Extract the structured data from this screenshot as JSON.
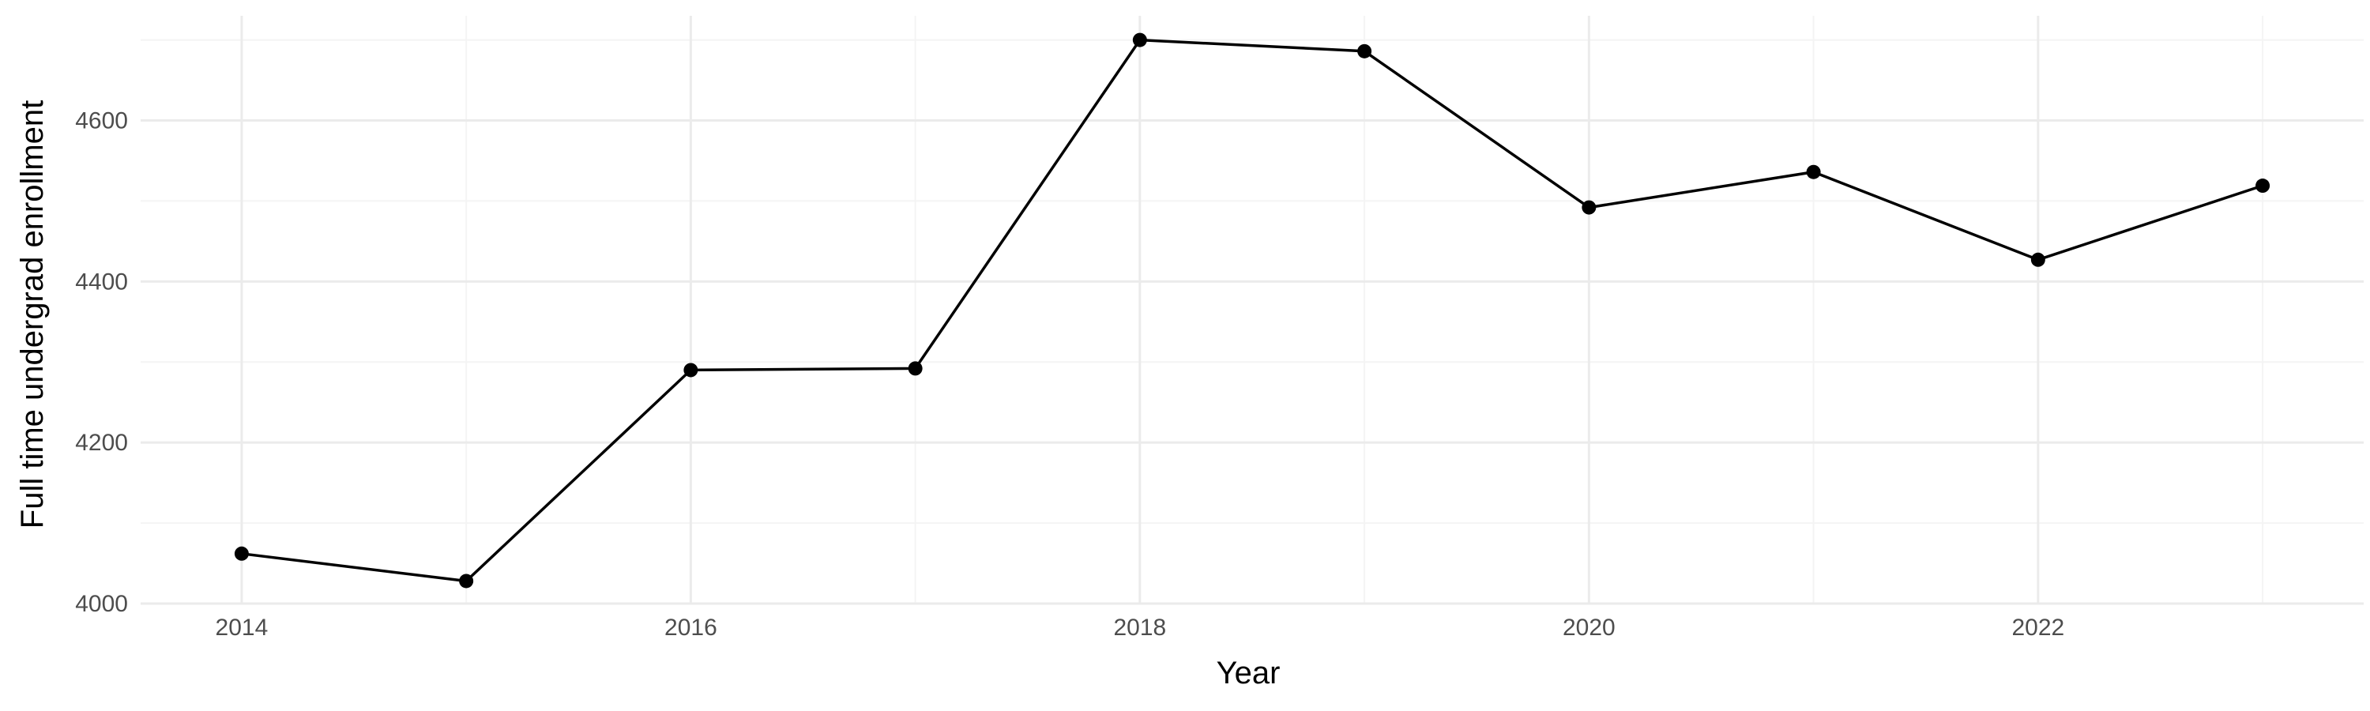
{
  "chart_data": {
    "type": "line",
    "title": "",
    "xlabel": "Year",
    "ylabel": "Full time undergrad enrollment",
    "x": [
      2014,
      2015,
      2016,
      2017,
      2018,
      2019,
      2020,
      2021,
      2022,
      2023
    ],
    "series": [
      {
        "values": [
          4062,
          4028,
          4290,
          4292,
          4700,
          4686,
          4492,
          4536,
          4427,
          4519
        ]
      }
    ],
    "xlim": [
      2013.55,
      2023.45
    ],
    "ylim": [
      4000,
      4730
    ],
    "xticks": [
      2014,
      2016,
      2018,
      2020,
      2022
    ],
    "yticks": [
      4000,
      4200,
      4400,
      4600
    ],
    "grid": true,
    "legend": "none",
    "colors": {
      "line": "#000000",
      "grid": "#ebebeb",
      "tick_text": "#4d4d4d"
    }
  }
}
